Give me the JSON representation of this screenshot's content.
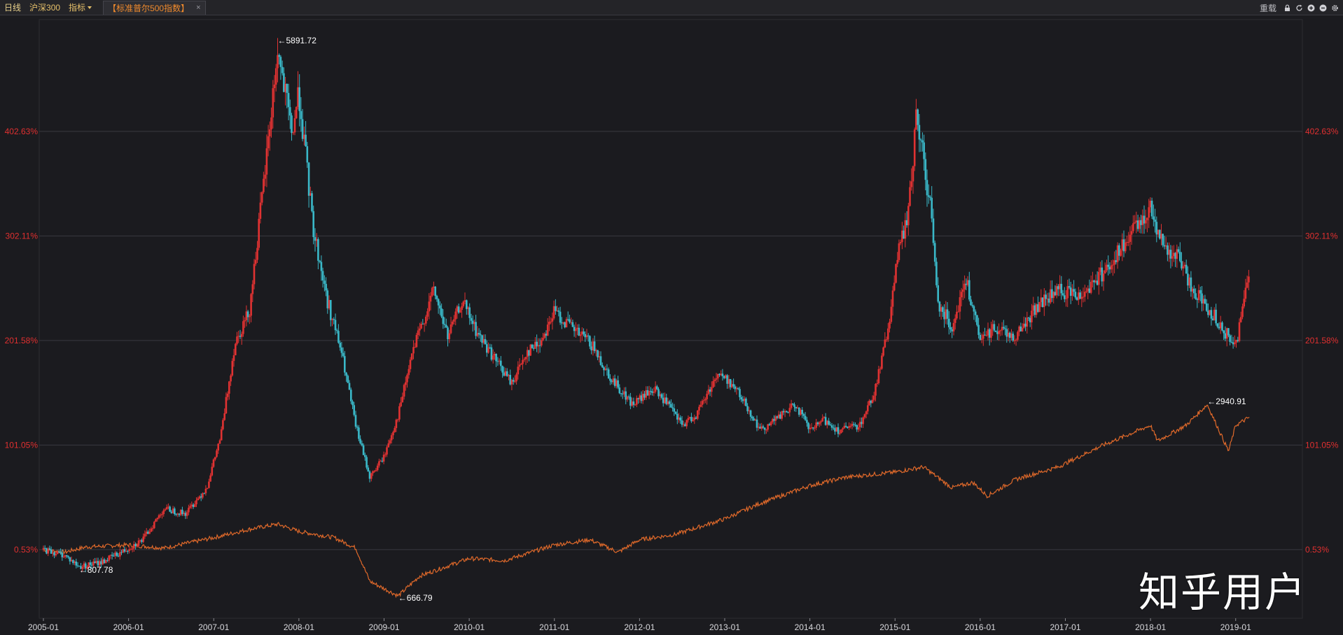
{
  "toolbar": {
    "period": "日线",
    "symbol": "沪深300",
    "indicator_menu": "指标",
    "overlay_tab": "【标准普尔500指数】",
    "overlay_close": "×",
    "reload": "重载"
  },
  "watermark": "知乎用户",
  "colors": {
    "background": "#1b1b1f",
    "grid": "#3a3a40",
    "axis_label": "#e03030",
    "candle_up": "#e03232",
    "candle_down": "#3ab8c8",
    "overlay": "#e0692a",
    "annotation": "#ffffff",
    "tab_text": "#f08a2c",
    "menu_text": "#e6c06a"
  },
  "chart_data": {
    "type": "line",
    "title": "",
    "xlabel": "",
    "ylabel": "",
    "y_unit": "percent change from 2005-01",
    "grid": true,
    "x_ticks": [
      "2005-01",
      "2006-01",
      "2007-01",
      "2008-01",
      "2009-01",
      "2010-01",
      "2011-01",
      "2012-01",
      "2013-01",
      "2014-01",
      "2015-01",
      "2016-01",
      "2017-01",
      "2018-01",
      "2019-01"
    ],
    "y_ticks": [
      "0.53%",
      "101.05%",
      "201.58%",
      "302.11%",
      "402.63%"
    ],
    "y_tick_values": [
      0.53,
      101.05,
      201.58,
      302.11,
      402.63
    ],
    "ylim": [
      -48,
      490
    ],
    "xlim": [
      "2005-01",
      "2019-03"
    ],
    "series": [
      {
        "name": "沪深300",
        "style": "candlestick",
        "x": [
          "2005-01",
          "2005-04",
          "2005-06",
          "2005-09",
          "2005-12",
          "2006-03",
          "2006-06",
          "2006-09",
          "2006-12",
          "2007-02",
          "2007-04",
          "2007-06",
          "2007-08",
          "2007-10",
          "2007-12",
          "2008-01",
          "2008-03",
          "2008-05",
          "2008-07",
          "2008-09",
          "2008-11",
          "2009-01",
          "2009-03",
          "2009-05",
          "2009-08",
          "2009-10",
          "2009-12",
          "2010-02",
          "2010-04",
          "2010-07",
          "2010-09",
          "2010-11",
          "2011-01",
          "2011-04",
          "2011-06",
          "2011-09",
          "2011-12",
          "2012-03",
          "2012-05",
          "2012-07",
          "2012-09",
          "2012-12",
          "2013-02",
          "2013-04",
          "2013-06",
          "2013-09",
          "2013-11",
          "2014-01",
          "2014-03",
          "2014-05",
          "2014-08",
          "2014-10",
          "2014-12",
          "2015-01",
          "2015-03",
          "2015-04",
          "2015-06",
          "2015-07",
          "2015-09",
          "2015-11",
          "2016-01",
          "2016-03",
          "2016-06",
          "2016-09",
          "2016-12",
          "2017-03",
          "2017-06",
          "2017-09",
          "2017-12",
          "2018-01",
          "2018-03",
          "2018-05",
          "2018-07",
          "2018-10",
          "2019-01",
          "2019-03"
        ],
        "y": [
          0.5,
          -5,
          -16,
          -12,
          -2,
          10,
          40,
          35,
          60,
          110,
          200,
          230,
          350,
          480,
          400,
          440,
          310,
          240,
          190,
          120,
          70,
          90,
          130,
          190,
          250,
          205,
          240,
          210,
          190,
          160,
          190,
          200,
          230,
          210,
          200,
          165,
          140,
          155,
          140,
          120,
          130,
          170,
          160,
          140,
          115,
          130,
          140,
          115,
          125,
          115,
          120,
          150,
          210,
          270,
          330,
          420,
          330,
          240,
          215,
          260,
          200,
          215,
          205,
          235,
          250,
          245,
          265,
          290,
          320,
          330,
          290,
          280,
          250,
          225,
          195,
          275
        ]
      },
      {
        "name": "标准普尔500指数",
        "style": "line",
        "x": [
          "2005-01",
          "2005-04",
          "2005-07",
          "2006-01",
          "2006-06",
          "2007-01",
          "2007-06",
          "2007-10",
          "2008-01",
          "2008-06",
          "2008-09",
          "2008-11",
          "2009-03",
          "2009-06",
          "2010-01",
          "2010-06",
          "2011-01",
          "2011-06",
          "2011-10",
          "2012-01",
          "2012-06",
          "2013-01",
          "2013-06",
          "2014-01",
          "2014-06",
          "2015-01",
          "2015-05",
          "2015-09",
          "2015-12",
          "2016-02",
          "2016-06",
          "2016-12",
          "2017-06",
          "2018-01",
          "2018-02",
          "2018-06",
          "2018-09",
          "2018-12",
          "2019-01",
          "2019-03"
        ],
        "y": [
          0.5,
          -2,
          3,
          5,
          2,
          12,
          20,
          25,
          18,
          12,
          2,
          -30,
          -44,
          -25,
          -8,
          -10,
          5,
          10,
          -2,
          10,
          15,
          30,
          45,
          62,
          70,
          75,
          80,
          60,
          65,
          52,
          68,
          80,
          100,
          120,
          105,
          120,
          140,
          95,
          120,
          128
        ]
      }
    ],
    "annotations": [
      {
        "text": "←5891.72",
        "x": "2007-10",
        "y": 490
      },
      {
        "text": "←807.78",
        "x": "2005-06",
        "y": -19
      },
      {
        "text": "←666.79",
        "x": "2009-03",
        "y": -46
      },
      {
        "text": "←2940.91",
        "x": "2018-09",
        "y": 143
      }
    ]
  }
}
